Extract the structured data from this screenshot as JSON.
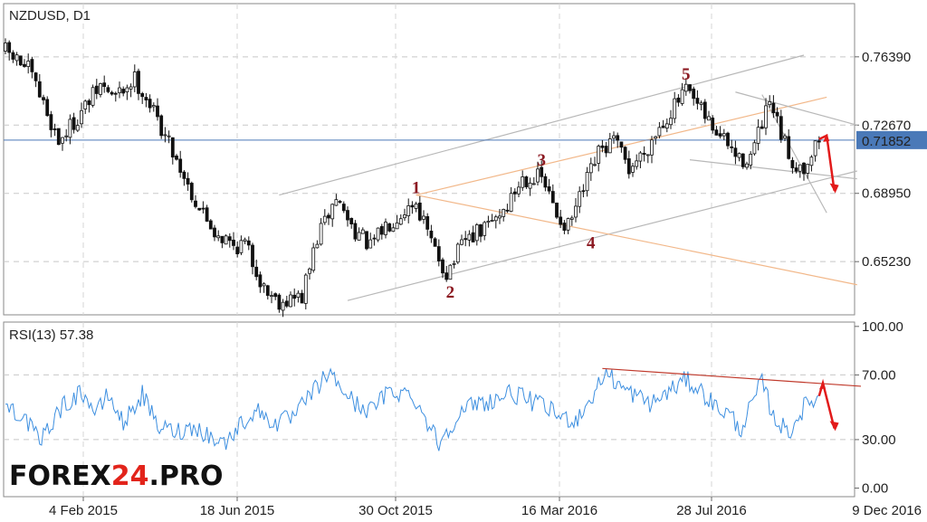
{
  "chart_data": [
    {
      "type": "candlestick",
      "title": "NZDUSD, D1",
      "x_tick_labels": [
        "4 Feb 2015",
        "18 Jun 2015",
        "30 Oct 2015",
        "16 Mar 2016",
        "28 Jul 2016",
        "9 Dec 2016"
      ],
      "y_tick_labels": [
        "0.76390",
        "0.72670",
        "0.68950",
        "0.65230"
      ],
      "y_ticks": [
        0.7639,
        0.7267,
        0.6895,
        0.6523
      ],
      "ylim": [
        0.6233,
        0.7929
      ],
      "current_price": 0.71852,
      "current_price_label": "0.71852",
      "price_path": [
        [
          0,
          0.767
        ],
        [
          6,
          0.757
        ],
        [
          10,
          0.738
        ],
        [
          14,
          0.718
        ],
        [
          19,
          0.731
        ],
        [
          25,
          0.748
        ],
        [
          29,
          0.742
        ],
        [
          34,
          0.752
        ],
        [
          37,
          0.742
        ],
        [
          44,
          0.713
        ],
        [
          50,
          0.685
        ],
        [
          55,
          0.669
        ],
        [
          60,
          0.661
        ],
        [
          63,
          0.662
        ],
        [
          68,
          0.638
        ],
        [
          72,
          0.631
        ],
        [
          78,
          0.633
        ],
        [
          82,
          0.665
        ],
        [
          87,
          0.687
        ],
        [
          91,
          0.672
        ],
        [
          96,
          0.66
        ],
        [
          100,
          0.672
        ],
        [
          105,
          0.681
        ],
        [
          108,
          0.685
        ],
        [
          112,
          0.662
        ],
        [
          116,
          0.646
        ],
        [
          121,
          0.664
        ],
        [
          126,
          0.67
        ],
        [
          132,
          0.683
        ],
        [
          136,
          0.698
        ],
        [
          141,
          0.698
        ],
        [
          145,
          0.678
        ],
        [
          148,
          0.671
        ],
        [
          152,
          0.691
        ],
        [
          156,
          0.711
        ],
        [
          160,
          0.718
        ],
        [
          164,
          0.703
        ],
        [
          168,
          0.712
        ],
        [
          172,
          0.726
        ],
        [
          176,
          0.737
        ],
        [
          179,
          0.745
        ],
        [
          184,
          0.731
        ],
        [
          187,
          0.723
        ],
        [
          190,
          0.716
        ],
        [
          193,
          0.707
        ],
        [
          196,
          0.71
        ],
        [
          198,
          0.721
        ],
        [
          201,
          0.738
        ],
        [
          204,
          0.721
        ],
        [
          207,
          0.706
        ],
        [
          210,
          0.704
        ],
        [
          214,
          0.719
        ]
      ],
      "annotations": {
        "wave_labels": [
          {
            "label": "1",
            "bar": 108,
            "price": 0.693
          },
          {
            "label": "2",
            "bar": 117,
            "price": 0.636
          },
          {
            "label": "3",
            "bar": 141,
            "price": 0.708
          },
          {
            "label": "4",
            "bar": 154,
            "price": 0.663
          },
          {
            "label": "5",
            "bar": 179,
            "price": 0.755
          }
        ],
        "channel_lines": [
          {
            "color": "gray",
            "from": [
              72,
              0.6886
            ],
            "to": [
              210,
              0.7648
            ]
          },
          {
            "color": "gray",
            "from": [
              90,
              0.6311
            ],
            "to": [
              224,
              0.7017
            ]
          },
          {
            "color": "orange",
            "from": [
              108,
              0.6886
            ],
            "to": [
              216,
              0.7419
            ]
          },
          {
            "color": "orange",
            "from": [
              108,
              0.6886
            ],
            "to": [
              224,
              0.6397
            ]
          },
          {
            "color": "gray",
            "from": [
              180,
              0.7078
            ],
            "to": [
              224,
              0.6974
            ]
          },
          {
            "color": "gray",
            "from": [
              192,
              0.7447
            ],
            "to": [
              224,
              0.7267
            ]
          },
          {
            "color": "gray",
            "from": [
              199,
              0.7433
            ],
            "to": [
              216,
              0.6789
            ]
          }
        ],
        "forecast_arrow": {
          "color": "red",
          "direction": "up-then-down",
          "from": [
            214,
            0.719
          ],
          "peak": [
            216,
            0.721
          ],
          "to": [
            218,
            0.691
          ]
        }
      }
    },
    {
      "type": "line",
      "title": "RSI(13) 57.38",
      "y_tick_labels": [
        "100.00",
        "70.00",
        "30.00",
        "0.00"
      ],
      "y_ticks": [
        100,
        70,
        30,
        0
      ],
      "ylim": [
        -5.3,
        102.7
      ],
      "levels": [
        70,
        30
      ],
      "rsi_path": [
        [
          0,
          52
        ],
        [
          5,
          44
        ],
        [
          9,
          28
        ],
        [
          14,
          48
        ],
        [
          20,
          60
        ],
        [
          24,
          46
        ],
        [
          27,
          58
        ],
        [
          31,
          40
        ],
        [
          36,
          58
        ],
        [
          40,
          38
        ],
        [
          45,
          35
        ],
        [
          50,
          38
        ],
        [
          55,
          30
        ],
        [
          58,
          28
        ],
        [
          62,
          40
        ],
        [
          66,
          48
        ],
        [
          71,
          40
        ],
        [
          76,
          44
        ],
        [
          80,
          57
        ],
        [
          85,
          71
        ],
        [
          88,
          63
        ],
        [
          92,
          52
        ],
        [
          96,
          48
        ],
        [
          101,
          60
        ],
        [
          107,
          58
        ],
        [
          111,
          41
        ],
        [
          114,
          28
        ],
        [
          118,
          42
        ],
        [
          123,
          52
        ],
        [
          128,
          54
        ],
        [
          133,
          59
        ],
        [
          137,
          55
        ],
        [
          142,
          50
        ],
        [
          146,
          44
        ],
        [
          150,
          42
        ],
        [
          154,
          55
        ],
        [
          158,
          72
        ],
        [
          162,
          62
        ],
        [
          166,
          57
        ],
        [
          170,
          52
        ],
        [
          174,
          59
        ],
        [
          179,
          67
        ],
        [
          183,
          60
        ],
        [
          187,
          50
        ],
        [
          191,
          45
        ],
        [
          193,
          35
        ],
        [
          196,
          50
        ],
        [
          199,
          66
        ],
        [
          202,
          44
        ],
        [
          206,
          34
        ],
        [
          210,
          50
        ],
        [
          214,
          57.38
        ]
      ],
      "annotations": {
        "trend_line": {
          "color": "darkred",
          "from": [
            157,
            74
          ],
          "to": [
            225,
            63
          ]
        },
        "forecast_arrow": {
          "color": "red",
          "direction": "up-then-down",
          "from": [
            214,
            57
          ],
          "peak": [
            215,
            65
          ],
          "to": [
            218,
            37
          ]
        }
      }
    }
  ],
  "logo": {
    "text_part1": "FOREX",
    "text_part2": "24",
    "text_part3": ".PRO"
  },
  "colors": {
    "candles": "#111111",
    "price_line": "#4a79b8",
    "current_price_bg": "#4a79b8",
    "rsi_line": "#3d8fe0",
    "gray_channel": "#b8b8b8",
    "orange_channel": "#f2b88a",
    "red_arrow": "#e21a1a",
    "trend_line": "#c0392b",
    "wave_label": "#8c1a22",
    "logo_black": "#111111",
    "logo_red": "#e2241b"
  }
}
